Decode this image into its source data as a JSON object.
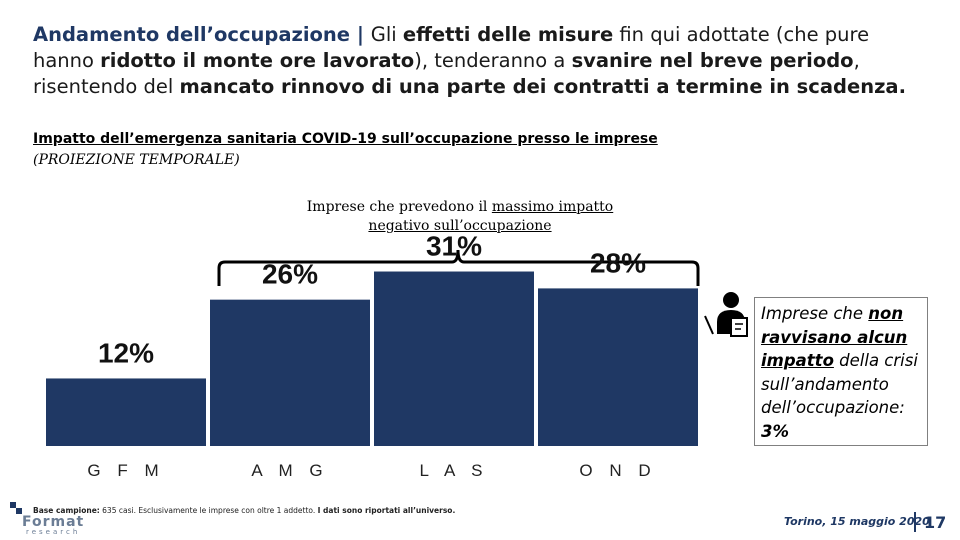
{
  "headline": {
    "part1": "Andamento dell’occupazione | ",
    "part2": "Gli ",
    "b1": "effetti delle misure",
    "part3": " fin qui adottate (che pure hanno ",
    "b2": "ridotto il monte ore lavorato",
    "part4": "), tenderanno a ",
    "b3": "svanire nel breve periodo",
    "part5": ", risentendo del ",
    "b4": "mancato rinnovo di una parte dei contratti a termine in scadenza."
  },
  "subtitle": "Impatto dell’emergenza sanitaria COVID-19 sull’occupazione presso le imprese",
  "subtitle2": "(PROIEZIONE TEMPORALE)",
  "brace_label": {
    "line1a": "Imprese che prevedono il ",
    "line1u": "massimo impatto",
    "line2u": "negativo sull’occupazione"
  },
  "chart_data": {
    "type": "bar",
    "categories": [
      "G F M",
      "A M G",
      "L A S",
      "O N D"
    ],
    "values": [
      12,
      26,
      31,
      28
    ],
    "value_labels": [
      "12%",
      "26%",
      "31%",
      "28%"
    ],
    "bar_color": "#1f3864",
    "ylim": [
      0,
      35
    ],
    "grid": false,
    "legend": "none"
  },
  "note": {
    "t1": "Imprese che ",
    "u1": "non ravvisano alcun impatto",
    "t2": " della crisi sull’andamento dell’occupazione: ",
    "b1": "3%"
  },
  "footnote": {
    "label": "Base campione:",
    "text1": " 635 casi. Esclusivamente le imprese con oltre 1 addetto. ",
    "bold2": "I dati sono riportati all’universo."
  },
  "logo": {
    "top": "Format",
    "bottom": "research"
  },
  "date": "Torino, 15 maggio 2020",
  "page_number": "17"
}
